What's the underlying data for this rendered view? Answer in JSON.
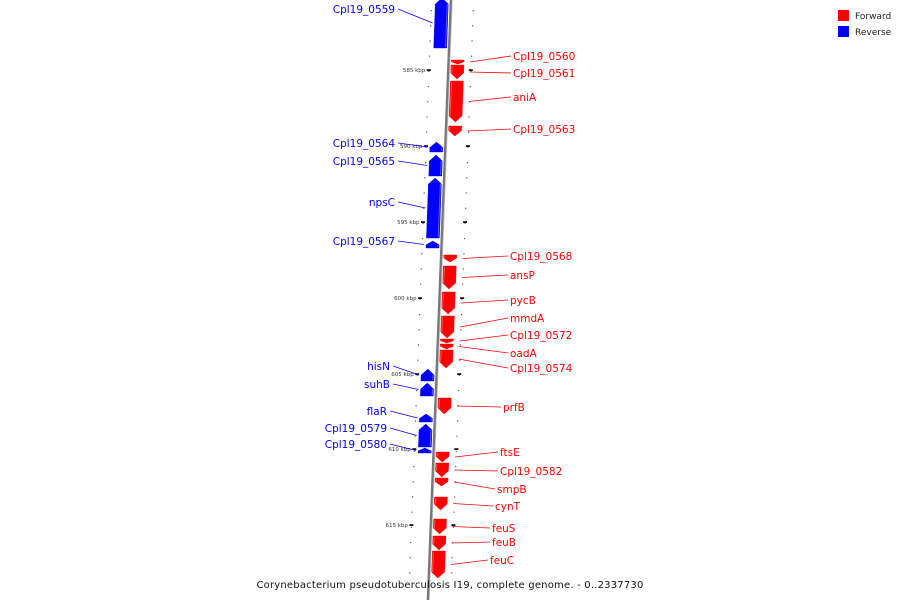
{
  "legend": {
    "forward_label": "Forward",
    "reverse_label": "Reverse",
    "forward_color": "#ff0000",
    "reverse_color": "#0000ff"
  },
  "caption": "Corynebacterium pseudotuberculosis I19, complete genome. - 0..2337730",
  "ticks": [
    "585 kbp",
    "590 kbp",
    "595 kbp",
    "600 kbp",
    "605 kbp",
    "610 kbp",
    "615 kbp"
  ],
  "genes": [
    {
      "name": "Cpl19_0559",
      "strand": "reverse"
    },
    {
      "name": "Cpl19_0560",
      "strand": "forward"
    },
    {
      "name": "Cpl19_0561",
      "strand": "forward"
    },
    {
      "name": "aniA",
      "strand": "forward"
    },
    {
      "name": "Cpl19_0563",
      "strand": "forward"
    },
    {
      "name": "Cpl19_0564",
      "strand": "reverse"
    },
    {
      "name": "Cpl19_0565",
      "strand": "reverse"
    },
    {
      "name": "npsC",
      "strand": "reverse"
    },
    {
      "name": "Cpl19_0567",
      "strand": "reverse"
    },
    {
      "name": "Cpl19_0568",
      "strand": "forward"
    },
    {
      "name": "ansP",
      "strand": "forward"
    },
    {
      "name": "pycB",
      "strand": "forward"
    },
    {
      "name": "mmdA",
      "strand": "forward"
    },
    {
      "name": "Cpl19_0572",
      "strand": "forward"
    },
    {
      "name": "oadA",
      "strand": "forward"
    },
    {
      "name": "Cpl19_0574",
      "strand": "forward"
    },
    {
      "name": "hisN",
      "strand": "reverse"
    },
    {
      "name": "suhB",
      "strand": "reverse"
    },
    {
      "name": "prfB",
      "strand": "forward"
    },
    {
      "name": "flaR",
      "strand": "reverse"
    },
    {
      "name": "Cpl19_0579",
      "strand": "reverse"
    },
    {
      "name": "Cpl19_0580",
      "strand": "reverse"
    },
    {
      "name": "ftsE",
      "strand": "forward"
    },
    {
      "name": "Cpl19_0582",
      "strand": "forward"
    },
    {
      "name": "smpB",
      "strand": "forward"
    },
    {
      "name": "cynT",
      "strand": "forward"
    },
    {
      "name": "feuS",
      "strand": "forward"
    },
    {
      "name": "feuB",
      "strand": "forward"
    },
    {
      "name": "feuC",
      "strand": "forward"
    }
  ]
}
